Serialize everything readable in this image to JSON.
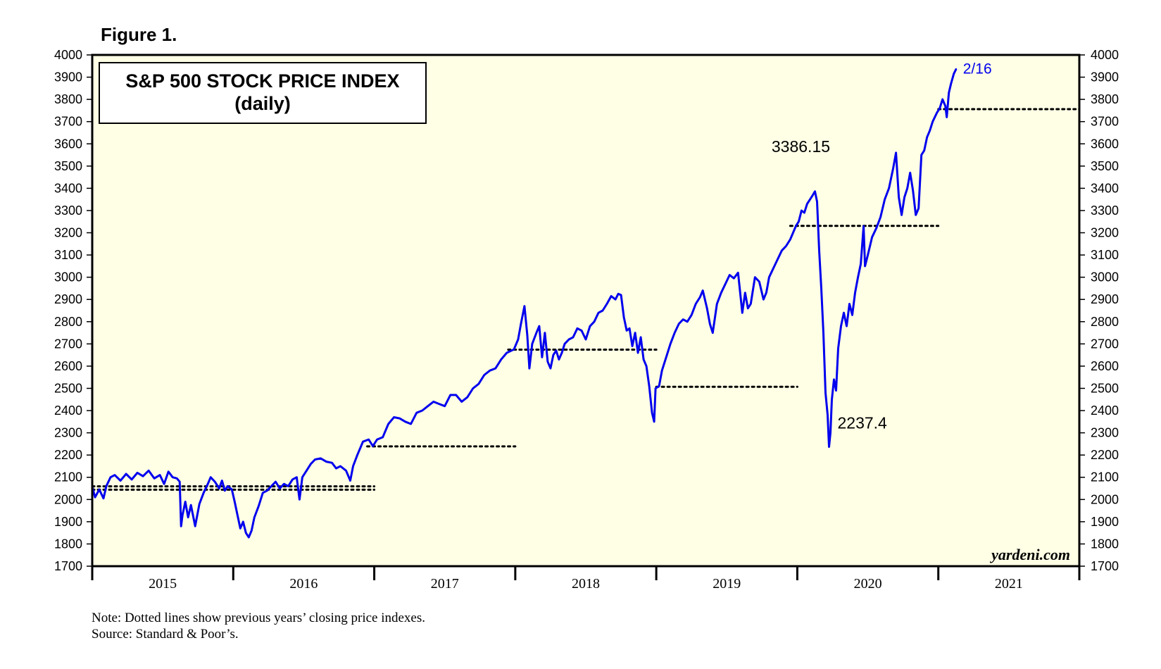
{
  "figure_label": "Figure 1.",
  "notes": {
    "note": "Note: Dotted lines show previous years’ closing price indexes.",
    "source": "Source: Standard & Poor’s."
  },
  "colors": {
    "series": "#0000ee",
    "plot_background": "#ffffe6",
    "reference_lines": "#000000"
  },
  "chart_data": {
    "type": "line",
    "title": "S&P 500 STOCK PRICE INDEX",
    "subtitle": "(daily)",
    "watermark": "yardeni.com",
    "xlabel": "",
    "ylabel": "",
    "ylim": [
      1700,
      4000
    ],
    "yticks": [
      1700,
      1800,
      1900,
      2000,
      2100,
      2200,
      2300,
      2400,
      2500,
      2600,
      2700,
      2800,
      2900,
      3000,
      3100,
      3200,
      3300,
      3400,
      3500,
      3600,
      3700,
      3800,
      3900,
      4000
    ],
    "xlim": [
      2015.0,
      2022.0
    ],
    "year_labels": [
      "2015",
      "2016",
      "2017",
      "2018",
      "2019",
      "2020",
      "2021"
    ],
    "series": [
      {
        "name": "S&P 500",
        "points": [
          [
            2015.0,
            2058
          ],
          [
            2015.02,
            2010
          ],
          [
            2015.05,
            2045
          ],
          [
            2015.08,
            2005
          ],
          [
            2015.1,
            2060
          ],
          [
            2015.13,
            2100
          ],
          [
            2015.16,
            2110
          ],
          [
            2015.2,
            2085
          ],
          [
            2015.24,
            2115
          ],
          [
            2015.28,
            2090
          ],
          [
            2015.32,
            2120
          ],
          [
            2015.36,
            2105
          ],
          [
            2015.4,
            2130
          ],
          [
            2015.44,
            2095
          ],
          [
            2015.48,
            2110
          ],
          [
            2015.51,
            2070
          ],
          [
            2015.54,
            2125
          ],
          [
            2015.57,
            2100
          ],
          [
            2015.6,
            2095
          ],
          [
            2015.62,
            2080
          ],
          [
            2015.63,
            1880
          ],
          [
            2015.64,
            1930
          ],
          [
            2015.66,
            1990
          ],
          [
            2015.68,
            1920
          ],
          [
            2015.7,
            1975
          ],
          [
            2015.73,
            1880
          ],
          [
            2015.76,
            1980
          ],
          [
            2015.79,
            2030
          ],
          [
            2015.82,
            2070
          ],
          [
            2015.84,
            2100
          ],
          [
            2015.87,
            2080
          ],
          [
            2015.9,
            2050
          ],
          [
            2015.92,
            2085
          ],
          [
            2015.94,
            2040
          ],
          [
            2015.96,
            2060
          ],
          [
            2015.99,
            2045
          ],
          [
            2016.01,
            1990
          ],
          [
            2016.03,
            1930
          ],
          [
            2016.05,
            1870
          ],
          [
            2016.07,
            1900
          ],
          [
            2016.09,
            1850
          ],
          [
            2016.11,
            1830
          ],
          [
            2016.13,
            1860
          ],
          [
            2016.15,
            1920
          ],
          [
            2016.18,
            1970
          ],
          [
            2016.21,
            2030
          ],
          [
            2016.24,
            2040
          ],
          [
            2016.27,
            2060
          ],
          [
            2016.3,
            2080
          ],
          [
            2016.33,
            2050
          ],
          [
            2016.36,
            2070
          ],
          [
            2016.39,
            2060
          ],
          [
            2016.42,
            2090
          ],
          [
            2016.45,
            2100
          ],
          [
            2016.47,
            2000
          ],
          [
            2016.49,
            2100
          ],
          [
            2016.52,
            2130
          ],
          [
            2016.55,
            2160
          ],
          [
            2016.58,
            2180
          ],
          [
            2016.62,
            2185
          ],
          [
            2016.66,
            2170
          ],
          [
            2016.7,
            2165
          ],
          [
            2016.73,
            2140
          ],
          [
            2016.76,
            2150
          ],
          [
            2016.8,
            2130
          ],
          [
            2016.83,
            2085
          ],
          [
            2016.85,
            2150
          ],
          [
            2016.88,
            2200
          ],
          [
            2016.92,
            2260
          ],
          [
            2016.96,
            2270
          ],
          [
            2016.99,
            2240
          ],
          [
            2017.02,
            2270
          ],
          [
            2017.06,
            2280
          ],
          [
            2017.1,
            2340
          ],
          [
            2017.14,
            2370
          ],
          [
            2017.18,
            2365
          ],
          [
            2017.22,
            2350
          ],
          [
            2017.26,
            2340
          ],
          [
            2017.3,
            2390
          ],
          [
            2017.34,
            2400
          ],
          [
            2017.38,
            2420
          ],
          [
            2017.42,
            2440
          ],
          [
            2017.46,
            2430
          ],
          [
            2017.5,
            2420
          ],
          [
            2017.54,
            2470
          ],
          [
            2017.58,
            2470
          ],
          [
            2017.62,
            2440
          ],
          [
            2017.66,
            2460
          ],
          [
            2017.7,
            2500
          ],
          [
            2017.74,
            2520
          ],
          [
            2017.78,
            2560
          ],
          [
            2017.82,
            2580
          ],
          [
            2017.86,
            2590
          ],
          [
            2017.9,
            2630
          ],
          [
            2017.94,
            2660
          ],
          [
            2017.99,
            2675
          ],
          [
            2018.02,
            2720
          ],
          [
            2018.04,
            2790
          ],
          [
            2018.065,
            2870
          ],
          [
            2018.085,
            2740
          ],
          [
            2018.1,
            2590
          ],
          [
            2018.12,
            2700
          ],
          [
            2018.15,
            2750
          ],
          [
            2018.17,
            2780
          ],
          [
            2018.19,
            2640
          ],
          [
            2018.21,
            2750
          ],
          [
            2018.23,
            2620
          ],
          [
            2018.25,
            2590
          ],
          [
            2018.27,
            2650
          ],
          [
            2018.29,
            2670
          ],
          [
            2018.31,
            2630
          ],
          [
            2018.33,
            2660
          ],
          [
            2018.35,
            2700
          ],
          [
            2018.38,
            2720
          ],
          [
            2018.41,
            2730
          ],
          [
            2018.44,
            2770
          ],
          [
            2018.47,
            2760
          ],
          [
            2018.5,
            2720
          ],
          [
            2018.53,
            2780
          ],
          [
            2018.56,
            2800
          ],
          [
            2018.59,
            2840
          ],
          [
            2018.62,
            2850
          ],
          [
            2018.65,
            2880
          ],
          [
            2018.68,
            2915
          ],
          [
            2018.71,
            2900
          ],
          [
            2018.73,
            2925
          ],
          [
            2018.75,
            2920
          ],
          [
            2018.77,
            2820
          ],
          [
            2018.79,
            2760
          ],
          [
            2018.81,
            2770
          ],
          [
            2018.83,
            2690
          ],
          [
            2018.85,
            2750
          ],
          [
            2018.87,
            2660
          ],
          [
            2018.89,
            2730
          ],
          [
            2018.91,
            2630
          ],
          [
            2018.93,
            2600
          ],
          [
            2018.95,
            2510
          ],
          [
            2018.97,
            2390
          ],
          [
            2018.985,
            2350
          ],
          [
            2018.995,
            2500
          ],
          [
            2019.02,
            2510
          ],
          [
            2019.04,
            2580
          ],
          [
            2019.07,
            2640
          ],
          [
            2019.1,
            2700
          ],
          [
            2019.13,
            2750
          ],
          [
            2019.16,
            2790
          ],
          [
            2019.19,
            2810
          ],
          [
            2019.22,
            2800
          ],
          [
            2019.25,
            2830
          ],
          [
            2019.28,
            2880
          ],
          [
            2019.31,
            2910
          ],
          [
            2019.33,
            2940
          ],
          [
            2019.36,
            2860
          ],
          [
            2019.38,
            2790
          ],
          [
            2019.4,
            2750
          ],
          [
            2019.43,
            2880
          ],
          [
            2019.46,
            2930
          ],
          [
            2019.49,
            2970
          ],
          [
            2019.52,
            3010
          ],
          [
            2019.55,
            2995
          ],
          [
            2019.58,
            3020
          ],
          [
            2019.6,
            2900
          ],
          [
            2019.61,
            2840
          ],
          [
            2019.63,
            2930
          ],
          [
            2019.65,
            2860
          ],
          [
            2019.67,
            2880
          ],
          [
            2019.7,
            3000
          ],
          [
            2019.73,
            2980
          ],
          [
            2019.76,
            2900
          ],
          [
            2019.78,
            2930
          ],
          [
            2019.8,
            3000
          ],
          [
            2019.83,
            3040
          ],
          [
            2019.86,
            3080
          ],
          [
            2019.89,
            3120
          ],
          [
            2019.92,
            3140
          ],
          [
            2019.95,
            3170
          ],
          [
            2019.99,
            3230
          ],
          [
            2020.01,
            3250
          ],
          [
            2020.03,
            3300
          ],
          [
            2020.05,
            3290
          ],
          [
            2020.07,
            3330
          ],
          [
            2020.09,
            3350
          ],
          [
            2020.11,
            3370
          ],
          [
            2020.125,
            3386
          ],
          [
            2020.14,
            3340
          ],
          [
            2020.155,
            3120
          ],
          [
            2020.17,
            2950
          ],
          [
            2020.185,
            2750
          ],
          [
            2020.2,
            2480
          ],
          [
            2020.215,
            2380
          ],
          [
            2020.225,
            2237
          ],
          [
            2020.235,
            2300
          ],
          [
            2020.245,
            2450
          ],
          [
            2020.26,
            2540
          ],
          [
            2020.275,
            2490
          ],
          [
            2020.29,
            2680
          ],
          [
            2020.31,
            2780
          ],
          [
            2020.33,
            2840
          ],
          [
            2020.35,
            2780
          ],
          [
            2020.37,
            2880
          ],
          [
            2020.39,
            2830
          ],
          [
            2020.41,
            2930
          ],
          [
            2020.43,
            3000
          ],
          [
            2020.45,
            3060
          ],
          [
            2020.47,
            3230
          ],
          [
            2020.48,
            3050
          ],
          [
            2020.5,
            3100
          ],
          [
            2020.53,
            3180
          ],
          [
            2020.56,
            3220
          ],
          [
            2020.59,
            3270
          ],
          [
            2020.62,
            3350
          ],
          [
            2020.65,
            3400
          ],
          [
            2020.68,
            3490
          ],
          [
            2020.7,
            3560
          ],
          [
            2020.72,
            3360
          ],
          [
            2020.74,
            3280
          ],
          [
            2020.76,
            3360
          ],
          [
            2020.78,
            3400
          ],
          [
            2020.8,
            3470
          ],
          [
            2020.82,
            3390
          ],
          [
            2020.84,
            3280
          ],
          [
            2020.86,
            3310
          ],
          [
            2020.88,
            3550
          ],
          [
            2020.9,
            3570
          ],
          [
            2020.92,
            3630
          ],
          [
            2020.94,
            3660
          ],
          [
            2020.96,
            3700
          ],
          [
            2020.99,
            3740
          ],
          [
            2021.01,
            3760
          ],
          [
            2021.03,
            3800
          ],
          [
            2021.05,
            3770
          ],
          [
            2021.06,
            3720
          ],
          [
            2021.075,
            3830
          ],
          [
            2021.09,
            3870
          ],
          [
            2021.11,
            3915
          ],
          [
            2021.125,
            3935
          ]
        ]
      }
    ],
    "reference_lines": [
      {
        "label": "2014 close",
        "value": 2059,
        "from": 2015.0,
        "to": 2017.0
      },
      {
        "label": "2015 close",
        "value": 2044,
        "from": 2015.0,
        "to": 2017.0
      },
      {
        "label": "2016 close",
        "value": 2239,
        "from": 2016.95,
        "to": 2018.0
      },
      {
        "label": "2017 close",
        "value": 2674,
        "from": 2017.95,
        "to": 2019.0
      },
      {
        "label": "2018 close",
        "value": 2507,
        "from": 2019.0,
        "to": 2020.0
      },
      {
        "label": "2019 close",
        "value": 3231,
        "from": 2019.95,
        "to": 2021.0
      },
      {
        "label": "2020 close",
        "value": 3756,
        "from": 2021.0,
        "to": 2022.0
      }
    ],
    "annotations": [
      {
        "text": "3386.15",
        "x": 2020.125,
        "y": 3386.15
      },
      {
        "text": "2237.4",
        "x": 2020.225,
        "y": 2237.4
      },
      {
        "text": "2/16",
        "x": 2021.125,
        "y": 3935
      }
    ]
  }
}
